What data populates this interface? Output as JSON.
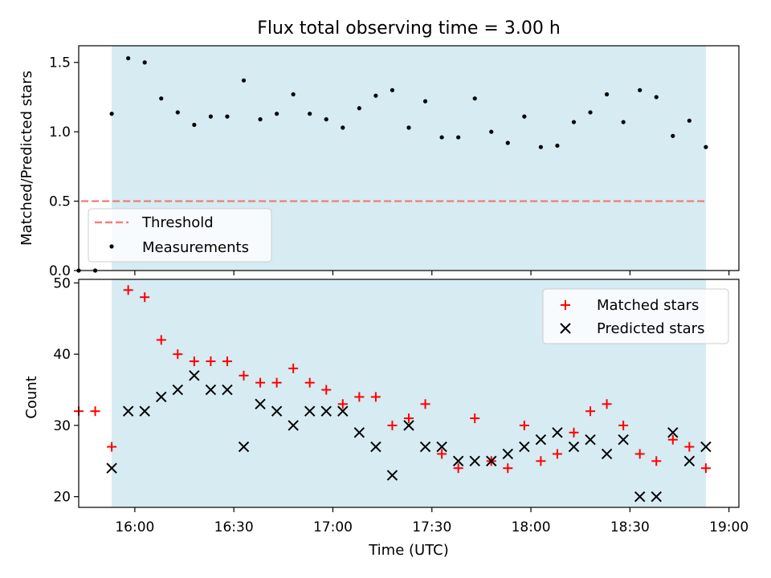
{
  "chart_data": [
    {
      "type": "scatter",
      "title": "Flux total observing time = 3.00 h",
      "xlabel": "",
      "ylabel": "Matched/Predicted stars",
      "ylim": [
        0,
        1.62
      ],
      "xlim": [
        "15:43",
        "19:03"
      ],
      "yticks": [
        "0.0",
        "0.5",
        "1.0",
        "1.5"
      ],
      "observing_window": [
        "15:53",
        "18:53"
      ],
      "threshold": {
        "name": "Threshold",
        "y": 0.5,
        "x": [
          "15:53",
          "18:53"
        ],
        "color": "#f08080"
      },
      "series": [
        {
          "name": "Measurements",
          "color": "#000000",
          "x": [
            "15:43",
            "15:48",
            "15:53",
            "15:58",
            "16:03",
            "16:08",
            "16:13",
            "16:18",
            "16:23",
            "16:28",
            "16:33",
            "16:38",
            "16:43",
            "16:48",
            "16:53",
            "16:58",
            "17:03",
            "17:08",
            "17:13",
            "17:18",
            "17:23",
            "17:28",
            "17:33",
            "17:38",
            "17:43",
            "17:48",
            "17:53",
            "17:58",
            "18:03",
            "18:08",
            "18:13",
            "18:18",
            "18:23",
            "18:28",
            "18:33",
            "18:38",
            "18:43",
            "18:48",
            "18:53"
          ],
          "y": [
            0.0,
            0.0,
            1.13,
            1.53,
            1.5,
            1.24,
            1.14,
            1.05,
            1.11,
            1.11,
            1.37,
            1.09,
            1.13,
            1.27,
            1.13,
            1.09,
            1.03,
            1.17,
            1.26,
            1.3,
            1.03,
            1.22,
            0.96,
            0.96,
            1.24,
            1.0,
            0.92,
            1.11,
            0.89,
            0.9,
            1.07,
            1.14,
            1.27,
            1.07,
            1.3,
            1.25,
            0.97,
            1.08,
            0.89
          ]
        }
      ],
      "legend": "lower-left"
    },
    {
      "type": "scatter",
      "title": "",
      "xlabel": "Time (UTC)",
      "ylabel": "Count",
      "ylim": [
        18.5,
        50.5
      ],
      "xlim": [
        "15:43",
        "19:03"
      ],
      "xticks": [
        "16:00",
        "16:30",
        "17:00",
        "17:30",
        "18:00",
        "18:30",
        "19:00"
      ],
      "yticks": [
        "20",
        "30",
        "40",
        "50"
      ],
      "observing_window": [
        "15:53",
        "18:53"
      ],
      "series": [
        {
          "name": "Matched stars",
          "marker": "+",
          "color": "#ff0000",
          "x": [
            "15:43",
            "15:48",
            "15:53",
            "15:58",
            "16:03",
            "16:08",
            "16:13",
            "16:18",
            "16:23",
            "16:28",
            "16:33",
            "16:38",
            "16:43",
            "16:48",
            "16:53",
            "16:58",
            "17:03",
            "17:08",
            "17:13",
            "17:18",
            "17:23",
            "17:28",
            "17:33",
            "17:38",
            "17:43",
            "17:48",
            "17:53",
            "17:58",
            "18:03",
            "18:08",
            "18:13",
            "18:18",
            "18:23",
            "18:28",
            "18:33",
            "18:38",
            "18:43",
            "18:48",
            "18:53"
          ],
          "y": [
            32,
            32,
            27,
            49,
            48,
            42,
            40,
            39,
            39,
            39,
            37,
            36,
            36,
            38,
            36,
            35,
            33,
            34,
            34,
            30,
            31,
            33,
            26,
            24,
            31,
            25,
            24,
            30,
            25,
            26,
            29,
            32,
            33,
            30,
            26,
            25,
            28,
            27,
            24
          ]
        },
        {
          "name": "Predicted stars",
          "marker": "x",
          "color": "#000000",
          "x": [
            "15:53",
            "15:58",
            "16:03",
            "16:08",
            "16:13",
            "16:18",
            "16:23",
            "16:28",
            "16:33",
            "16:38",
            "16:43",
            "16:48",
            "16:53",
            "16:58",
            "17:03",
            "17:08",
            "17:13",
            "17:18",
            "17:23",
            "17:28",
            "17:33",
            "17:38",
            "17:43",
            "17:48",
            "17:53",
            "17:58",
            "18:03",
            "18:08",
            "18:13",
            "18:18",
            "18:23",
            "18:28",
            "18:33",
            "18:38",
            "18:43",
            "18:48",
            "18:53"
          ],
          "y": [
            24,
            32,
            32,
            34,
            35,
            37,
            35,
            35,
            27,
            33,
            32,
            30,
            32,
            32,
            32,
            29,
            27,
            23,
            30,
            27,
            27,
            25,
            25,
            25,
            26,
            27,
            28,
            29,
            27,
            28,
            26,
            28,
            20,
            20,
            29,
            25,
            27
          ]
        }
      ],
      "legend": "upper-right"
    }
  ],
  "colors": {
    "shade": "#add8e6"
  }
}
